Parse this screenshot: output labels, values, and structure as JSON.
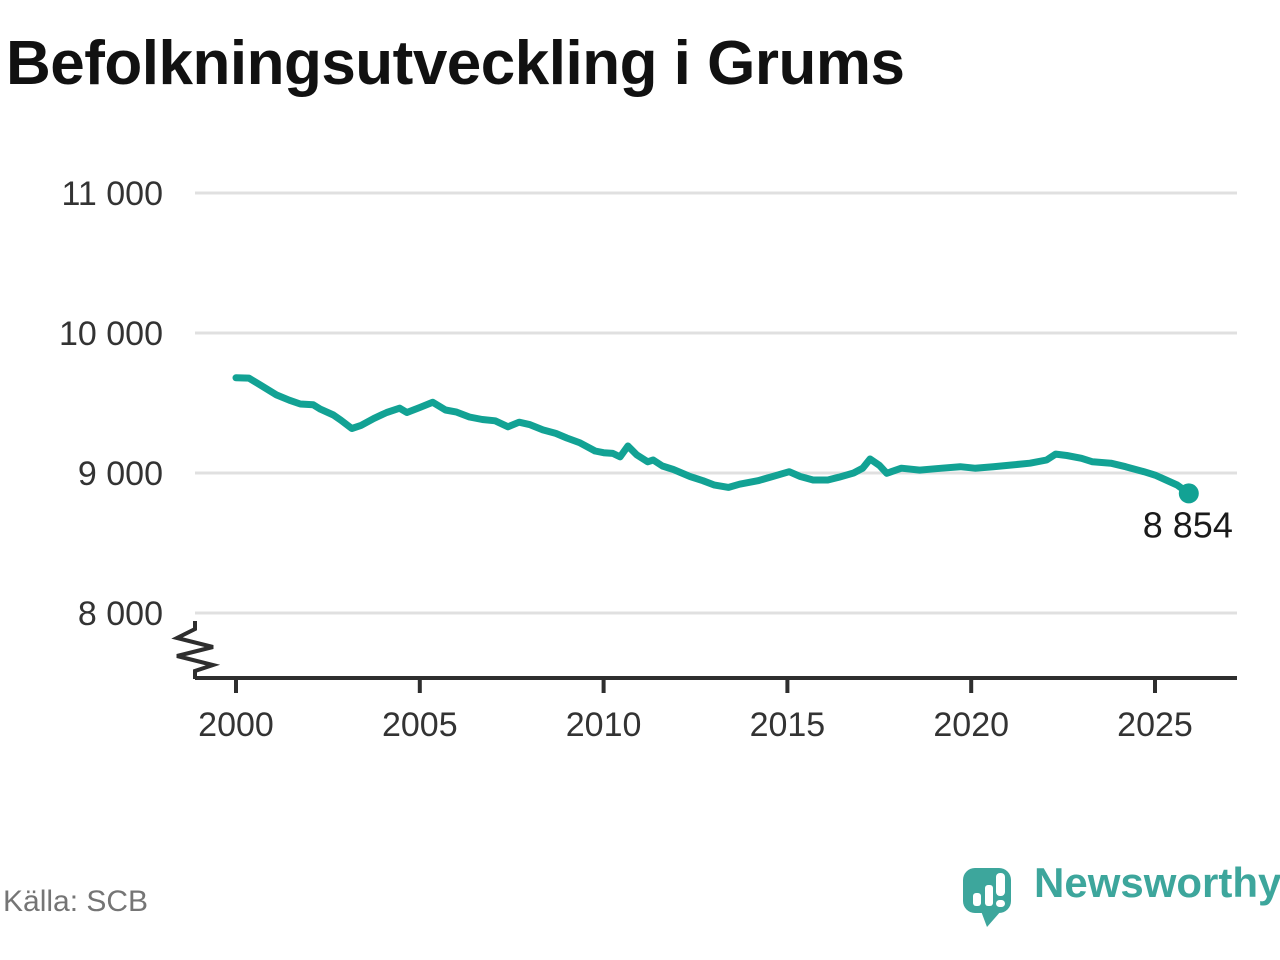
{
  "title": "Befolkningsutveckling i Grums",
  "source": "Källa: SCB",
  "logo": {
    "text": "Newsworthy",
    "icon": "newsworthy-speech-bubble-chart-icon"
  },
  "end_label": "8 854",
  "colors": {
    "line": "#12a294",
    "grid": "#e0e0e0",
    "axis": "#2e2e2e",
    "tick_label": "#333333",
    "title_text": "#111111",
    "end_label": "#1a1a1a",
    "source_text": "#757575",
    "logo": "#3da69c",
    "background": "#ffffff"
  },
  "chart_data": {
    "type": "line",
    "title": "Befolkningsutveckling i Grums",
    "xlabel": "",
    "ylabel": "",
    "grid": "horizontal",
    "legend": "none",
    "y_axis_break": true,
    "xlim": [
      1998.9,
      2027.2
    ],
    "ylim": [
      8000,
      11000
    ],
    "xticks": [
      2000,
      2005,
      2010,
      2015,
      2020,
      2025
    ],
    "yticks": [
      8000,
      9000,
      10000,
      11000
    ],
    "ytick_labels": [
      "8 000",
      "9 000",
      "10 000",
      "11 000"
    ],
    "x": [
      2000.0,
      2000.35,
      2000.65,
      2001.1,
      2001.45,
      2001.75,
      2002.1,
      2002.3,
      2002.65,
      2002.85,
      2003.15,
      2003.4,
      2003.75,
      2004.1,
      2004.45,
      2004.65,
      2005.0,
      2005.35,
      2005.7,
      2006.0,
      2006.35,
      2006.7,
      2007.05,
      2007.4,
      2007.7,
      2008.0,
      2008.35,
      2008.7,
      2009.0,
      2009.36,
      2009.77,
      2010.0,
      2010.25,
      2010.45,
      2010.66,
      2010.9,
      2011.2,
      2011.35,
      2011.6,
      2011.9,
      2012.35,
      2012.7,
      2013.0,
      2013.4,
      2013.7,
      2014.2,
      2014.6,
      2015.05,
      2015.35,
      2015.7,
      2016.1,
      2016.4,
      2016.8,
      2017.05,
      2017.25,
      2017.5,
      2017.7,
      2018.1,
      2018.6,
      2019.2,
      2019.7,
      2020.1,
      2020.6,
      2021.1,
      2021.6,
      2022.05,
      2022.3,
      2022.6,
      2023.0,
      2023.3,
      2023.8,
      2024.2,
      2024.7,
      2025.0,
      2025.3,
      2025.6,
      2025.92
    ],
    "y": [
      9680,
      9678,
      9630,
      9558,
      9520,
      9493,
      9487,
      9456,
      9414,
      9378,
      9318,
      9340,
      9390,
      9432,
      9463,
      9432,
      9468,
      9505,
      9450,
      9435,
      9400,
      9382,
      9373,
      9330,
      9363,
      9345,
      9308,
      9283,
      9250,
      9215,
      9157,
      9145,
      9140,
      9115,
      9193,
      9130,
      9080,
      9093,
      9050,
      9025,
      8975,
      8945,
      8915,
      8897,
      8920,
      8945,
      8975,
      9009,
      8975,
      8950,
      8950,
      8970,
      9000,
      9035,
      9100,
      9055,
      8998,
      9034,
      9021,
      9034,
      9045,
      9034,
      9045,
      9057,
      9070,
      9093,
      9135,
      9125,
      9105,
      9080,
      9070,
      9045,
      9009,
      8985,
      8950,
      8914,
      8854
    ],
    "last_point": {
      "x": 2025.92,
      "y": 8854,
      "label": "8 854"
    }
  }
}
